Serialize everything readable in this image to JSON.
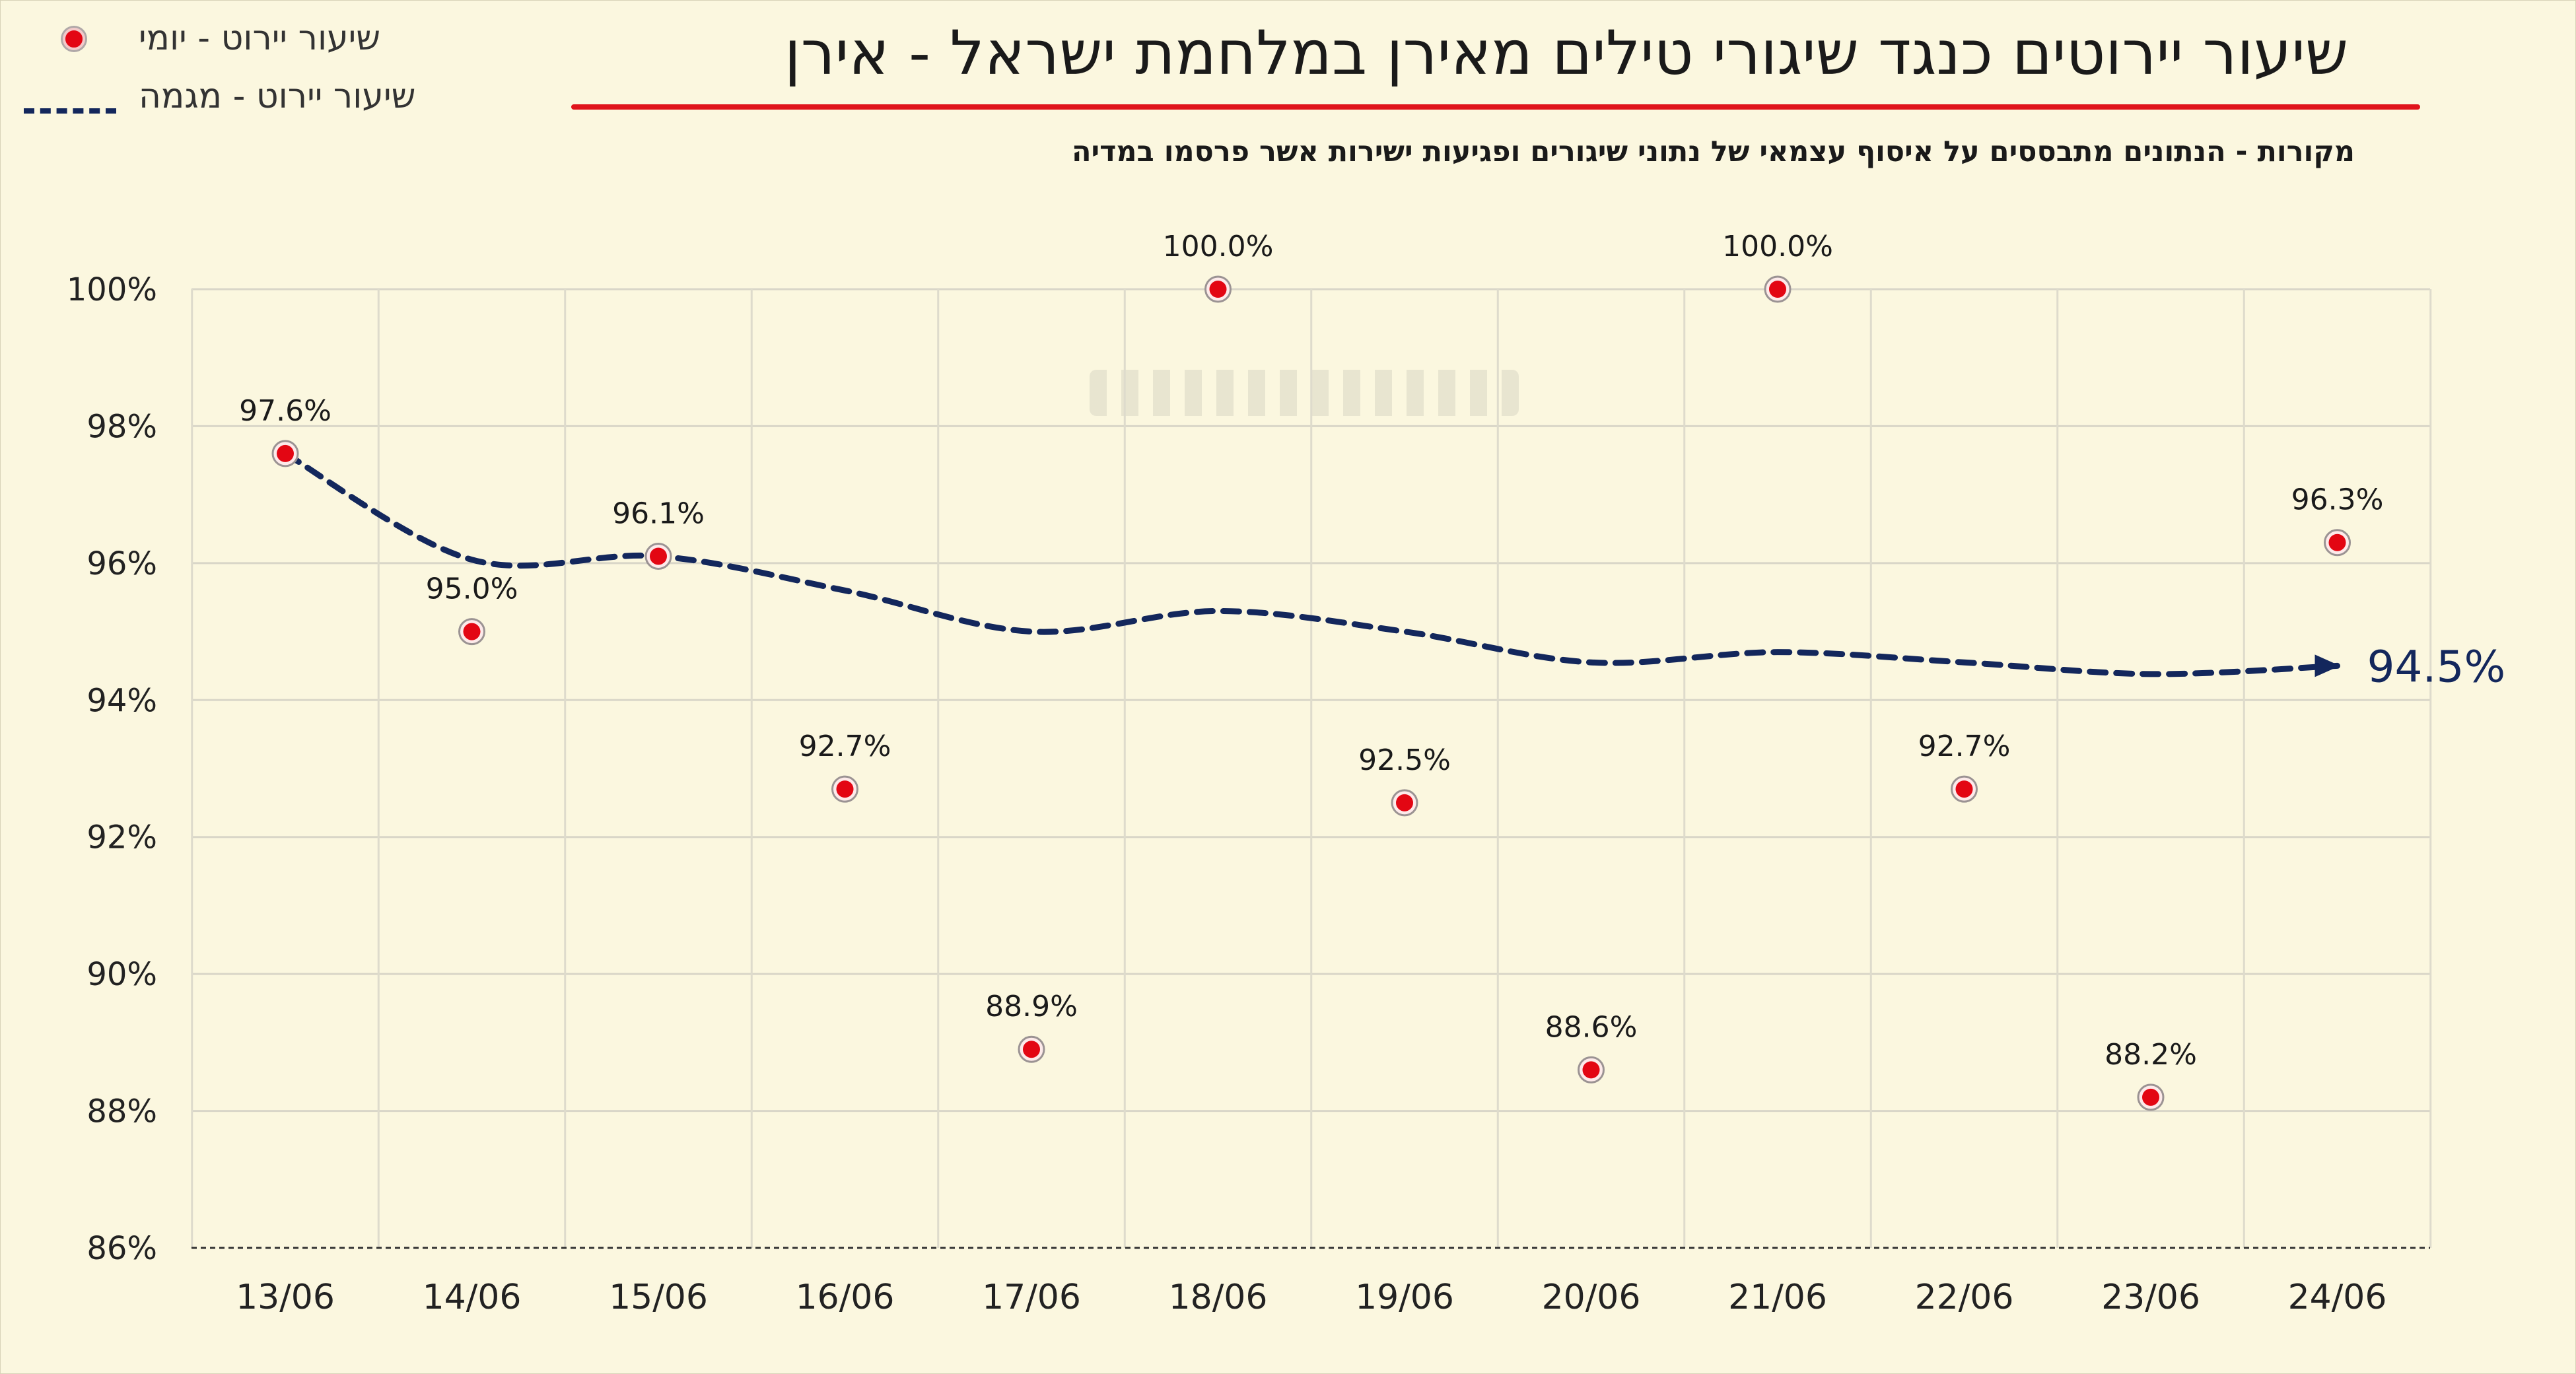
{
  "chart_data": {
    "type": "scatter",
    "title": "שיעור יירוטים כנגד שיגורי טילים מאירן במלחמת ישראל - אירן",
    "subtitle": "מקורות - הנתונים מתבססים על איסוף  עצמאי של נתוני שיגורים ופגיעות ישירות אשר פרסמו במדיה",
    "categories": [
      "13/06",
      "14/06",
      "15/06",
      "16/06",
      "17/06",
      "18/06",
      "19/06",
      "20/06",
      "21/06",
      "22/06",
      "23/06",
      "24/06"
    ],
    "series": [
      {
        "name": "שיעור יירוט - יומי",
        "kind": "points",
        "values": [
          97.6,
          95.0,
          96.1,
          92.7,
          88.9,
          100.0,
          92.5,
          88.6,
          100.0,
          92.7,
          88.2,
          96.3
        ],
        "labels": [
          "97.6%",
          "95.0%",
          "96.1%",
          "92.7%",
          "88.9%",
          "100.0%",
          "92.5%",
          "88.6%",
          "100.0%",
          "92.7%",
          "88.2%",
          "96.3%"
        ],
        "color": "#e30613"
      },
      {
        "name": "שיעור יירוט - מגמה",
        "kind": "dashed-line",
        "values": [
          97.6,
          96.05,
          96.1,
          95.6,
          95.0,
          95.3,
          95.0,
          94.55,
          94.7,
          94.55,
          94.38,
          94.5
        ],
        "end_label": "94.5%",
        "color": "#13275c"
      }
    ],
    "y_ticks": [
      "86%",
      "88%",
      "90%",
      "92%",
      "94%",
      "96%",
      "98%",
      "100%"
    ],
    "ylim": [
      86,
      100
    ],
    "grid": true,
    "legend": "top-left",
    "title_rule_color": "#e0141b",
    "background": "#fbf7df"
  }
}
